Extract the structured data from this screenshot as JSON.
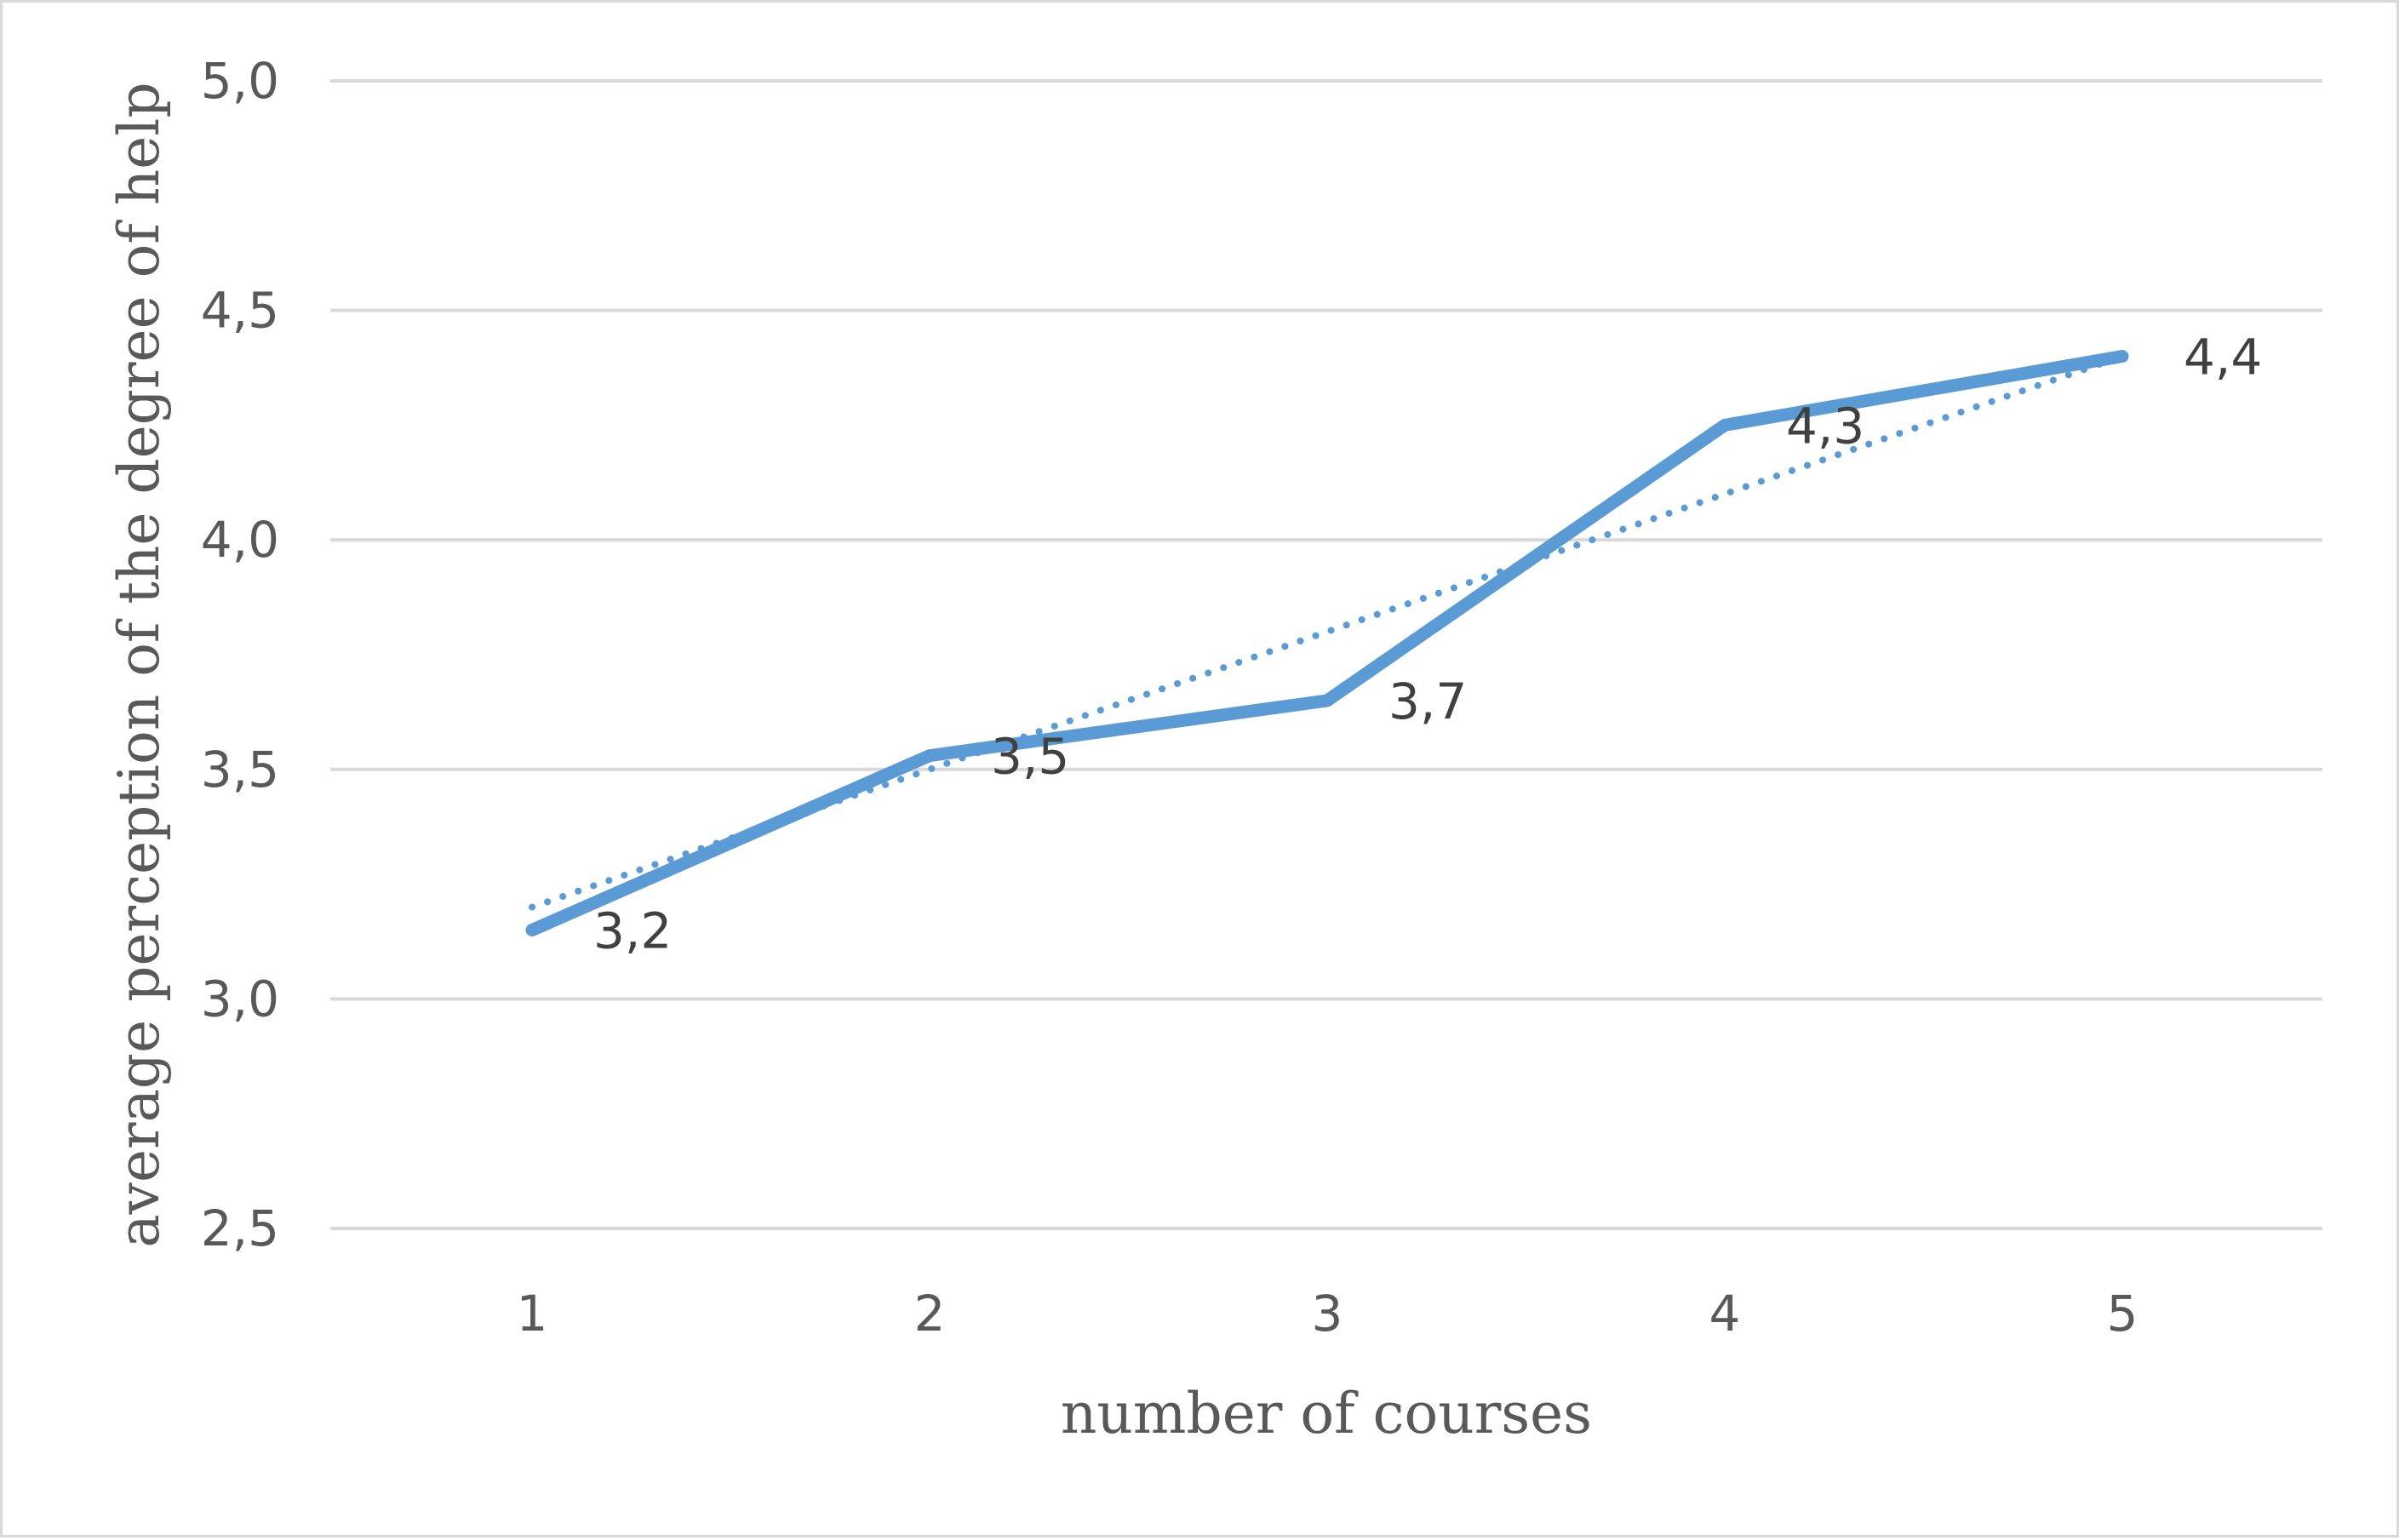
{
  "chart_data": {
    "type": "line",
    "title": "",
    "xlabel": "number of courses",
    "ylabel": "average perception of the degree of help",
    "categories": [
      "1",
      "2",
      "3",
      "4",
      "5"
    ],
    "ylim": [
      2.5,
      5.0
    ],
    "yticks": [
      "2,5",
      "3,0",
      "3,5",
      "4,0",
      "4,5",
      "5,0"
    ],
    "ytick_values": [
      2.5,
      3.0,
      3.5,
      4.0,
      4.5,
      5.0
    ],
    "series": [
      {
        "values": [
          3.15,
          3.53,
          3.65,
          4.25,
          4.4
        ],
        "data_labels": [
          "3,2",
          "3,5",
          "3,7",
          "4,3",
          "4,4"
        ],
        "color": "#5b9bd5",
        "style": "solid"
      }
    ],
    "trendline": {
      "type": "linear",
      "style": "dotted",
      "color": "#5b9bd5",
      "values": [
        3.2,
        3.5,
        3.8,
        4.1,
        4.4
      ]
    },
    "grid": true,
    "legend": "none"
  }
}
